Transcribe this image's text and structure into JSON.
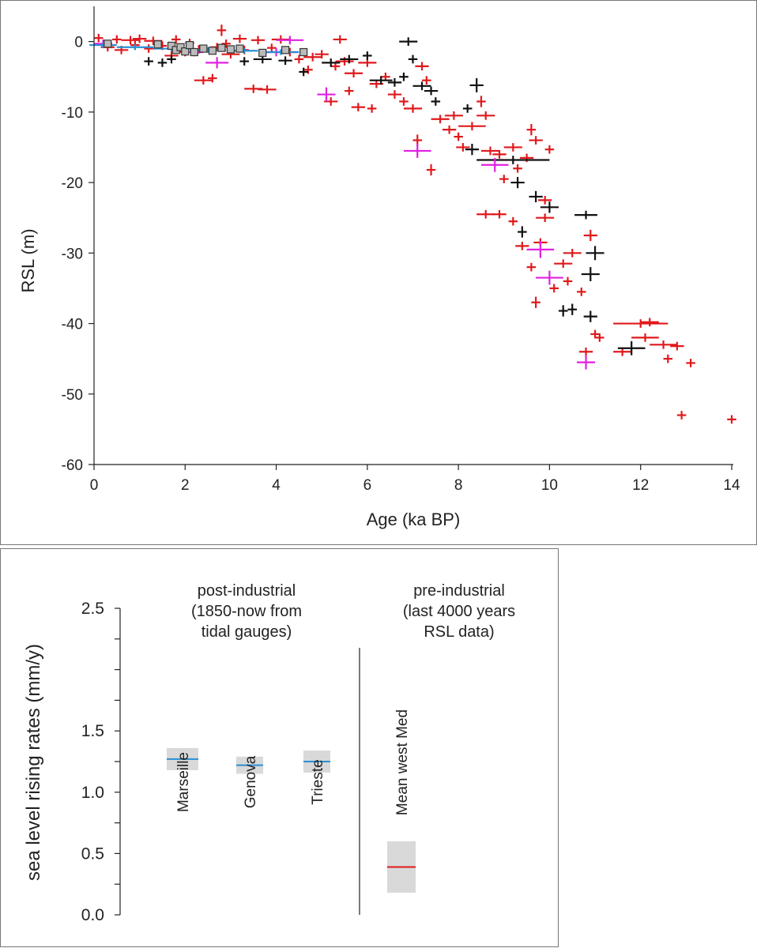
{
  "chart_data": [
    {
      "type": "scatter",
      "title": "",
      "xlabel": "Age (ka BP)",
      "ylabel": "RSL (m)",
      "xlim": [
        0,
        14
      ],
      "ylim": [
        -60,
        5
      ],
      "xticks": [
        "0",
        "2",
        "4",
        "6",
        "8",
        "10",
        "12",
        "14"
      ],
      "yticks": [
        "0",
        "-10",
        "-20",
        "-30",
        "-40",
        "-50",
        "-60"
      ],
      "grid": false,
      "series": [
        {
          "color": "#e0191b",
          "marker": "error-cross",
          "points": [
            [
              0.1,
              0.5,
              0.1,
              0.6
            ],
            [
              0.3,
              -0.8,
              0.15,
              0.6
            ],
            [
              0.5,
              0.3,
              0.1,
              0.6
            ],
            [
              0.6,
              -1.2,
              0.15,
              0.6
            ],
            [
              0.8,
              0.2,
              0.2,
              0.6
            ],
            [
              0.9,
              -0.5,
              0.1,
              0.6
            ],
            [
              1.0,
              0.4,
              0.15,
              0.6
            ],
            [
              1.2,
              -1.0,
              0.1,
              0.6
            ],
            [
              1.3,
              0.1,
              0.2,
              0.6
            ],
            [
              1.5,
              -0.6,
              0.1,
              0.6
            ],
            [
              1.7,
              -2.0,
              0.15,
              0.6
            ],
            [
              1.8,
              0.3,
              0.1,
              0.6
            ],
            [
              2.0,
              -1.5,
              0.2,
              0.6
            ],
            [
              2.1,
              -0.2,
              0.1,
              0.6
            ],
            [
              2.3,
              -1.1,
              0.15,
              0.6
            ],
            [
              2.4,
              -5.5,
              0.2,
              0.6
            ],
            [
              2.6,
              -5.2,
              0.1,
              0.6
            ],
            [
              2.7,
              -0.8,
              0.15,
              0.6
            ],
            [
              2.8,
              1.6,
              0.1,
              0.8
            ],
            [
              2.9,
              -0.3,
              0.1,
              0.6
            ],
            [
              3.0,
              -1.8,
              0.2,
              0.6
            ],
            [
              3.2,
              0.4,
              0.15,
              0.6
            ],
            [
              3.3,
              -1.2,
              0.1,
              0.6
            ],
            [
              3.5,
              -6.7,
              0.2,
              0.6
            ],
            [
              3.8,
              -6.8,
              0.2,
              0.6
            ],
            [
              3.6,
              0.2,
              0.15,
              0.6
            ],
            [
              3.9,
              -0.9,
              0.1,
              0.6
            ],
            [
              4.1,
              0.3,
              0.2,
              0.6
            ],
            [
              4.3,
              -1.5,
              0.15,
              0.6
            ],
            [
              4.5,
              -2.5,
              0.1,
              0.6
            ],
            [
              4.7,
              -4.0,
              0.1,
              0.6
            ],
            [
              4.8,
              -2.2,
              0.2,
              0.6
            ],
            [
              5.0,
              -1.8,
              0.15,
              0.6
            ],
            [
              5.2,
              -8.5,
              0.15,
              0.6
            ],
            [
              5.3,
              -3.5,
              0.1,
              0.6
            ],
            [
              5.4,
              0.3,
              0.15,
              0.6
            ],
            [
              5.5,
              -2.8,
              0.2,
              0.6
            ],
            [
              5.6,
              -7.0,
              0.1,
              0.6
            ],
            [
              5.7,
              -4.5,
              0.2,
              0.6
            ],
            [
              5.8,
              -9.3,
              0.15,
              0.6
            ],
            [
              6.0,
              -3.0,
              0.2,
              0.6
            ],
            [
              6.1,
              -9.5,
              0.1,
              0.6
            ],
            [
              6.2,
              -6.0,
              0.15,
              0.6
            ],
            [
              6.4,
              -5.0,
              0.1,
              0.6
            ],
            [
              6.6,
              -7.5,
              0.15,
              0.6
            ],
            [
              6.8,
              -8.5,
              0.1,
              0.6
            ],
            [
              7.0,
              -9.5,
              0.2,
              0.6
            ],
            [
              7.1,
              -14.0,
              0.1,
              0.8
            ],
            [
              7.2,
              -3.5,
              0.15,
              0.6
            ],
            [
              7.3,
              -5.5,
              0.1,
              0.6
            ],
            [
              7.4,
              -18.2,
              0.1,
              0.8
            ],
            [
              7.6,
              -11.0,
              0.2,
              0.6
            ],
            [
              7.8,
              -12.5,
              0.15,
              0.6
            ],
            [
              7.9,
              -10.5,
              0.2,
              0.6
            ],
            [
              8.0,
              -13.5,
              0.1,
              0.6
            ],
            [
              8.1,
              -15.0,
              0.15,
              0.6
            ],
            [
              8.3,
              -12.0,
              0.3,
              0.6
            ],
            [
              8.5,
              -8.5,
              0.1,
              0.8
            ],
            [
              8.6,
              -10.5,
              0.2,
              0.6
            ],
            [
              8.7,
              -15.5,
              0.2,
              0.6
            ],
            [
              8.9,
              -16.0,
              0.15,
              0.6
            ],
            [
              9.0,
              -19.5,
              0.1,
              0.6
            ],
            [
              9.2,
              -15.0,
              0.2,
              0.6
            ],
            [
              9.3,
              -18.0,
              0.1,
              0.6
            ],
            [
              9.5,
              -16.5,
              0.15,
              0.6
            ],
            [
              9.6,
              -12.5,
              0.1,
              0.8
            ],
            [
              9.7,
              -14.0,
              0.15,
              0.6
            ],
            [
              9.9,
              -22.5,
              0.15,
              0.6
            ],
            [
              10.0,
              -15.3,
              0.1,
              0.6
            ],
            [
              8.6,
              -24.5,
              0.2,
              0.6
            ],
            [
              8.9,
              -24.5,
              0.15,
              0.6
            ],
            [
              9.2,
              -25.5,
              0.1,
              0.6
            ],
            [
              9.4,
              -29.0,
              0.15,
              0.6
            ],
            [
              9.6,
              -32.0,
              0.1,
              0.6
            ],
            [
              9.7,
              -37.0,
              0.1,
              0.8
            ],
            [
              9.8,
              -28.5,
              0.15,
              0.6
            ],
            [
              9.9,
              -25.0,
              0.2,
              0.6
            ],
            [
              10.1,
              -35.0,
              0.1,
              0.6
            ],
            [
              10.3,
              -31.5,
              0.2,
              0.6
            ],
            [
              10.4,
              -34.0,
              0.1,
              0.6
            ],
            [
              10.5,
              -30.0,
              0.2,
              0.6
            ],
            [
              10.7,
              -35.5,
              0.1,
              0.6
            ],
            [
              10.8,
              -44.0,
              0.15,
              0.6
            ],
            [
              10.9,
              -27.5,
              0.15,
              0.8
            ],
            [
              11.0,
              -41.5,
              0.1,
              0.6
            ],
            [
              11.1,
              -42.0,
              0.1,
              0.6
            ],
            [
              11.6,
              -44.0,
              0.2,
              0.6
            ],
            [
              12.0,
              -40.0,
              0.6,
              0.6
            ],
            [
              12.1,
              -42.0,
              0.3,
              0.6
            ],
            [
              12.2,
              -39.8,
              0.2,
              0.6
            ],
            [
              12.5,
              -43.0,
              0.3,
              0.6
            ],
            [
              12.6,
              -45.0,
              0.1,
              0.6
            ],
            [
              12.8,
              -43.2,
              0.15,
              0.6
            ],
            [
              13.1,
              -45.6,
              0.1,
              0.6
            ],
            [
              12.9,
              -53.0,
              0.1,
              0.6
            ],
            [
              14.0,
              -53.6,
              0.1,
              0.6
            ]
          ]
        },
        {
          "color": "#111111",
          "marker": "error-cross",
          "points": [
            [
              1.2,
              -2.8,
              0.1,
              0.6
            ],
            [
              1.5,
              -3.0,
              0.1,
              0.6
            ],
            [
              1.7,
              -2.5,
              0.1,
              0.6
            ],
            [
              3.3,
              -2.8,
              0.1,
              0.6
            ],
            [
              3.7,
              -2.5,
              0.2,
              0.6
            ],
            [
              4.2,
              -2.7,
              0.15,
              0.6
            ],
            [
              4.6,
              -4.3,
              0.1,
              0.6
            ],
            [
              5.2,
              -3.0,
              0.2,
              0.6
            ],
            [
              5.6,
              -2.5,
              0.2,
              0.6
            ],
            [
              6.0,
              -2.0,
              0.1,
              0.6
            ],
            [
              6.3,
              -5.5,
              0.25,
              0.6
            ],
            [
              6.6,
              -5.8,
              0.15,
              0.6
            ],
            [
              6.8,
              -5.0,
              0.1,
              0.6
            ],
            [
              6.9,
              0.0,
              0.2,
              0.6
            ],
            [
              7.0,
              -2.5,
              0.1,
              0.6
            ],
            [
              7.2,
              -6.3,
              0.2,
              0.6
            ],
            [
              7.4,
              -7.0,
              0.15,
              0.6
            ],
            [
              7.5,
              -8.5,
              0.1,
              0.6
            ],
            [
              8.2,
              -9.5,
              0.1,
              0.6
            ],
            [
              8.4,
              -6.2,
              0.15,
              1.0
            ],
            [
              8.3,
              -15.3,
              0.15,
              0.8
            ],
            [
              9.2,
              -16.8,
              0.8,
              0.6
            ],
            [
              9.3,
              -20.0,
              0.15,
              0.8
            ],
            [
              9.4,
              -27.0,
              0.1,
              0.8
            ],
            [
              9.7,
              -22.0,
              0.15,
              0.8
            ],
            [
              10.0,
              -23.5,
              0.2,
              0.8
            ],
            [
              10.8,
              -24.6,
              0.25,
              0.6
            ],
            [
              11.0,
              -30.0,
              0.2,
              1.0
            ],
            [
              10.9,
              -33.0,
              0.2,
              1.0
            ],
            [
              10.3,
              -38.2,
              0.1,
              0.8
            ],
            [
              10.5,
              -38.0,
              0.1,
              0.8
            ],
            [
              10.9,
              -39.0,
              0.15,
              0.8
            ],
            [
              11.8,
              -43.5,
              0.3,
              1.0
            ]
          ]
        },
        {
          "color": "#e020e0",
          "marker": "error-cross",
          "points": [
            [
              0.2,
              -0.3,
              0.2,
              0.6
            ],
            [
              2.2,
              -1.5,
              0.2,
              0.6
            ],
            [
              2.7,
              -3.0,
              0.25,
              0.8
            ],
            [
              4.0,
              -1.5,
              0.3,
              0.6
            ],
            [
              4.3,
              0.2,
              0.3,
              0.6
            ],
            [
              5.1,
              -7.5,
              0.2,
              1.0
            ],
            [
              7.1,
              -15.5,
              0.3,
              1.0
            ],
            [
              8.8,
              -17.5,
              0.3,
              1.0
            ],
            [
              9.8,
              -29.5,
              0.3,
              1.2
            ],
            [
              10.0,
              -33.5,
              0.3,
              1.0
            ],
            [
              10.8,
              -45.5,
              0.2,
              1.0
            ]
          ]
        },
        {
          "color": "#2a8fd6",
          "marker": "error-cross",
          "points": [
            [
              0.2,
              -0.5,
              0.3,
              0.4
            ],
            [
              0.9,
              -0.8,
              0.4,
              0.4
            ],
            [
              1.7,
              -1.0,
              0.4,
              0.4
            ],
            [
              2.5,
              -1.2,
              0.4,
              0.4
            ],
            [
              3.3,
              -1.3,
              0.3,
              0.4
            ],
            [
              4.1,
              -1.5,
              0.4,
              0.4
            ]
          ]
        },
        {
          "color": "#bbbbbb",
          "marker": "square",
          "points": [
            [
              0.3,
              -0.3
            ],
            [
              1.4,
              -0.4
            ],
            [
              1.7,
              -0.6
            ],
            [
              1.8,
              -1.2
            ],
            [
              1.9,
              -0.8
            ],
            [
              2.0,
              -1.4
            ],
            [
              2.1,
              -0.5
            ],
            [
              2.2,
              -1.5
            ],
            [
              2.4,
              -1.0
            ],
            [
              2.6,
              -1.3
            ],
            [
              2.8,
              -0.9
            ],
            [
              3.0,
              -1.1
            ],
            [
              3.2,
              -1.0
            ],
            [
              3.7,
              -1.6
            ],
            [
              4.2,
              -1.2
            ],
            [
              4.6,
              -1.5
            ]
          ]
        }
      ]
    },
    {
      "type": "bar",
      "title": "",
      "xlabel": "",
      "ylabel": "sea level rising rates (mm/y)",
      "ylim": [
        0.0,
        2.5
      ],
      "yticks": [
        "2.5",
        "1.5",
        "1.0",
        "0.5",
        "0.0"
      ],
      "grid": false,
      "groups": [
        {
          "heading": [
            "post-industrial",
            "(1850-now from",
            "tidal gauges)"
          ]
        },
        {
          "heading": [
            "pre-industrial",
            "(last 4000 years",
            "RSL data)"
          ]
        }
      ],
      "categories": [
        "Marseille",
        "Genova",
        "Trieste",
        "Mean west Med"
      ],
      "values": [
        1.27,
        1.22,
        1.25,
        0.39
      ],
      "ranges": [
        [
          1.18,
          1.36
        ],
        [
          1.15,
          1.29
        ],
        [
          1.16,
          1.34
        ],
        [
          0.18,
          0.6
        ]
      ],
      "line_colors": [
        "#2a8fd6",
        "#2a8fd6",
        "#2a8fd6",
        "#e0191b"
      ],
      "band_color": "#d9d9d9"
    }
  ]
}
